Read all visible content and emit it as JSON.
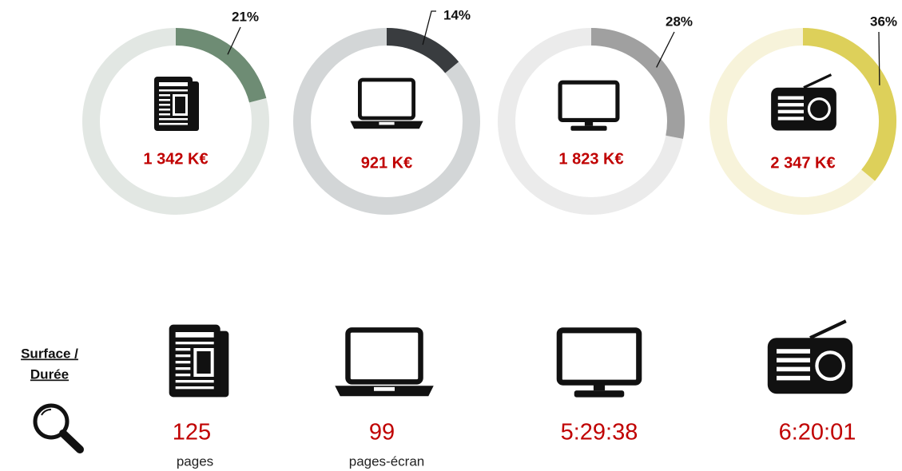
{
  "chart_data": [
    {
      "type": "donut",
      "values": [
        21
      ],
      "value_labels": [
        "21%"
      ],
      "color": "#6e8c74",
      "track_color": "#e2e7e3",
      "annotation": "1 342 K€"
    },
    {
      "type": "donut",
      "values": [
        14
      ],
      "value_labels": [
        "14%"
      ],
      "color": "#393c3f",
      "track_color": "#d3d6d7",
      "annotation": "921 K€"
    },
    {
      "type": "donut",
      "values": [
        28
      ],
      "value_labels": [
        "28%"
      ],
      "color": "#a0a0a0",
      "track_color": "#ebebeb",
      "annotation": "1 823 K€"
    },
    {
      "type": "donut",
      "values": [
        36
      ],
      "value_labels": [
        "36%"
      ],
      "color": "#ddd05a",
      "track_color": "#f7f3da",
      "annotation": "2 347 K€"
    }
  ],
  "summary": {
    "heading": [
      "Surface /",
      "Durée"
    ],
    "items": [
      {
        "value": 125,
        "unit": "pages"
      },
      {
        "value": 99,
        "unit": "pages-écran"
      },
      {
        "value": "5:29:38"
      },
      {
        "value": "6:20:01"
      }
    ]
  }
}
